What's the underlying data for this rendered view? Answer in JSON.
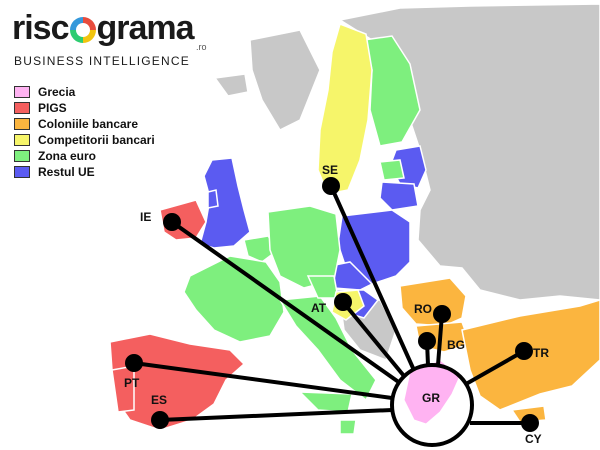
{
  "logo": {
    "word_start": "risc",
    "word_end": "grama",
    "suffix": ".ro",
    "tagline": "BUSINESS INTELLIGENCE"
  },
  "legend": [
    {
      "label": "Grecia",
      "color": "#ffb3f2"
    },
    {
      "label": "PIGS",
      "color": "#f45f5f"
    },
    {
      "label": "Coloniile bancare",
      "color": "#fbb53f"
    },
    {
      "label": "Competitorii bancari",
      "color": "#f6f56a"
    },
    {
      "label": "Zona euro",
      "color": "#7eef7e"
    },
    {
      "label": "Restul UE",
      "color": "#5b5bf1"
    }
  ],
  "hub": {
    "code": "GR"
  },
  "links": [
    {
      "code": "SE"
    },
    {
      "code": "IE"
    },
    {
      "code": "AT"
    },
    {
      "code": "RO"
    },
    {
      "code": "BG"
    },
    {
      "code": "TR"
    },
    {
      "code": "PT"
    },
    {
      "code": "ES"
    },
    {
      "code": "CY"
    }
  ],
  "colors": {
    "sea": "#ffffff",
    "non_eu": "#c8c8c8",
    "border": "#ffffff",
    "line": "#000000"
  }
}
